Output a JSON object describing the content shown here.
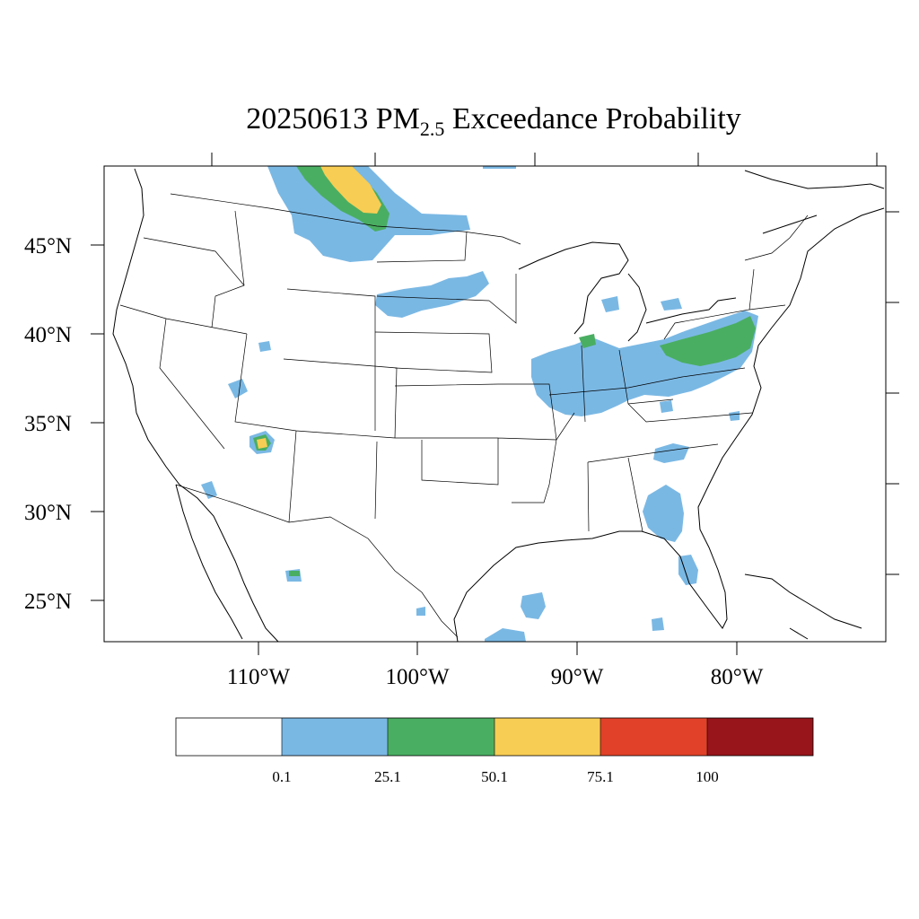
{
  "title": {
    "date": "20250613",
    "pollutant_main": "PM",
    "pollutant_sub": "2.5",
    "suffix": "Exceedance Probability"
  },
  "axes": {
    "lat_labels": [
      "45°N",
      "40°N",
      "35°N",
      "30°N",
      "25°N"
    ],
    "lon_labels": [
      "110°W",
      "100°W",
      "90°W",
      "80°W"
    ]
  },
  "colorbar": {
    "labels": [
      "0.1",
      "25.1",
      "50.1",
      "75.1",
      "100"
    ],
    "bins": [
      {
        "color": "#ffffff"
      },
      {
        "color": "#7ab8e4"
      },
      {
        "color": "#4aae62"
      },
      {
        "color": "#f8cd53"
      },
      {
        "color": "#e14129"
      },
      {
        "color": "#97151b"
      }
    ]
  },
  "chart_data": {
    "type": "heatmap",
    "title": "20250613 PM2.5 Exceedance Probability",
    "x_ticks": [
      "110°W",
      "100°W",
      "90°W",
      "80°W"
    ],
    "y_ticks": [
      "45°N",
      "40°N",
      "35°N",
      "30°N",
      "25°N"
    ],
    "color_scale": {
      "boundaries": [
        0.1,
        25.1,
        50.1,
        75.1,
        100
      ],
      "colors": [
        "#ffffff",
        "#7ab8e4",
        "#4aae62",
        "#f8cd53",
        "#e14129",
        "#97151b"
      ]
    }
  }
}
